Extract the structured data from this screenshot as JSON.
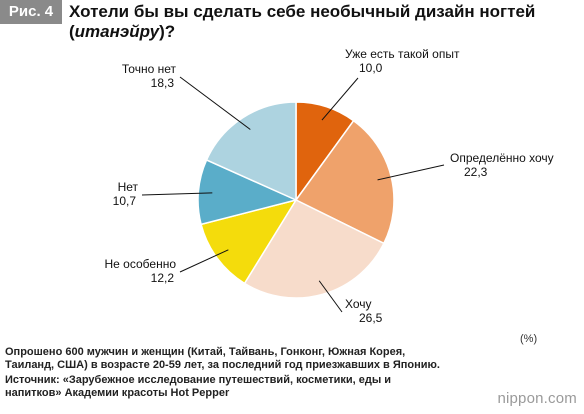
{
  "figure": {
    "badge": "Рис. 4",
    "title_line1": "Хотели бы вы сделать себе необычный дизайн ногтей",
    "title_line2_open": "(",
    "title_line2_italic": "итанэйру",
    "title_line2_close": ")?"
  },
  "chart_data": {
    "type": "pie",
    "unit": "(%)",
    "slices": [
      {
        "label": "Уже есть такой опыт",
        "value": 10.0,
        "display": "10,0",
        "color": "#e0640d"
      },
      {
        "label": "Определённо хочу",
        "value": 22.3,
        "display": "22,3",
        "color": "#efa26b"
      },
      {
        "label": "Хочу",
        "value": 26.5,
        "display": "26,5",
        "color": "#f7dccb"
      },
      {
        "label": "Не особенно",
        "value": 12.2,
        "display": "12,2",
        "color": "#f4dc0c"
      },
      {
        "label": "Нет",
        "value": 10.7,
        "display": "10,7",
        "color": "#5aadc9"
      },
      {
        "label": "Точно нет",
        "value": 18.3,
        "display": "18,3",
        "color": "#add3e0"
      }
    ]
  },
  "notes": {
    "survey": "Опрошено 600 мужчин и женщин (Китай, Тайвань, Гонконг, Южная Корея, Таиланд, США) в возрасте 20-59 лет, за последний год приезжавших в Японию.",
    "source": "Источник: «Зарубежное исследование путешествий, косметики, еды и напитков» Академии красоты Hot Pepper"
  },
  "brand": {
    "logo": "nippon.com"
  }
}
